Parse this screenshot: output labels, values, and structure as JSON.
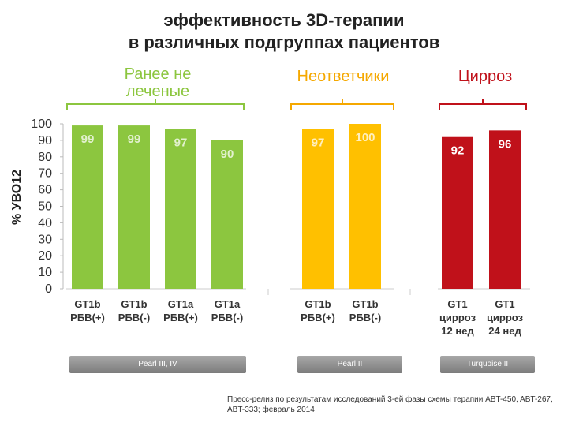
{
  "title": {
    "line1": "эффективность 3D-терапии",
    "line2": "в различных подгруппах пациентов"
  },
  "groups": [
    {
      "line1": "Ранее не",
      "line2": "леченые",
      "color": "#8cc63f"
    },
    {
      "line1": "Неответчики",
      "line2": "",
      "color": "#f5a800"
    },
    {
      "line1": "Цирроз",
      "line2": "",
      "color": "#c0111a"
    }
  ],
  "studies": [
    "Pearl III, IV",
    "Pearl II",
    "Turquoise II"
  ],
  "source_note": "Пресс-релиз по результатам исследований 3-ей фазы схемы терапии ABT-450, ABT-267, ABT-333; февраль 2014",
  "chart_data": {
    "type": "bar",
    "ylabel": "% УВО12",
    "ylim": [
      0,
      100
    ],
    "yticks": [
      0,
      10,
      20,
      30,
      40,
      50,
      60,
      70,
      80,
      90,
      100
    ],
    "grid": false,
    "categories": [
      [
        "GT1b",
        "РБВ(+)"
      ],
      [
        "GT1b",
        "РБВ(-)"
      ],
      [
        "GT1a",
        "РБВ(+)"
      ],
      [
        "GT1a",
        "РБВ(-)"
      ],
      [
        "GT1b",
        "РБВ(+)"
      ],
      [
        "GT1b",
        "РБВ(-)"
      ],
      [
        "GT1",
        "цирроз",
        "12 нед"
      ],
      [
        "GT1",
        "цирроз",
        "24 нед"
      ]
    ],
    "values": [
      99,
      99,
      97,
      90,
      97,
      100,
      92,
      96
    ],
    "group_index": [
      0,
      0,
      0,
      0,
      1,
      1,
      2,
      2
    ],
    "colors": [
      "#8cc63f",
      "#8cc63f",
      "#8cc63f",
      "#8cc63f",
      "#ffc000",
      "#ffc000",
      "#c0111a",
      "#c0111a"
    ]
  }
}
